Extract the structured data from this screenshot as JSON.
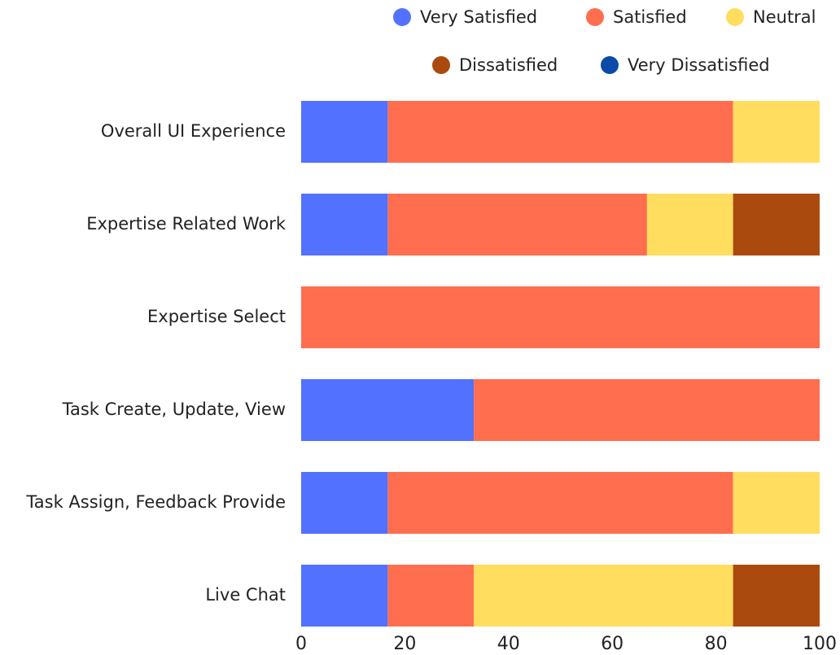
{
  "chart_data": {
    "type": "stacked_bar_horizontal",
    "categories": [
      "Overall UI Experience",
      "Expertise Related Work",
      "Expertise Select",
      "Task Create, Update, View",
      "Task Assign, Feedback Provide",
      "Live Chat"
    ],
    "series": [
      {
        "name": "Very Satisfied",
        "color": "#5271ff",
        "values": [
          16.7,
          16.7,
          0,
          33.3,
          16.7,
          16.7
        ]
      },
      {
        "name": "Satisfied",
        "color": "#ff6e4e",
        "values": [
          66.6,
          50,
          100,
          66.7,
          66.6,
          16.6
        ]
      },
      {
        "name": "Neutral",
        "color": "#ffdd5e",
        "values": [
          16.7,
          16.6,
          0,
          0,
          16.7,
          50
        ]
      },
      {
        "name": "Dissatisfied",
        "color": "#ab4a0e",
        "values": [
          0,
          16.7,
          0,
          0,
          0,
          16.7
        ]
      },
      {
        "name": "Very Dissatisfied",
        "color": "#0b4aa8",
        "values": [
          0,
          0,
          0,
          0,
          0,
          0
        ]
      }
    ],
    "xlim": [
      0,
      100
    ],
    "xticks": [
      0,
      20,
      40,
      60,
      80,
      100
    ],
    "grid": false
  }
}
